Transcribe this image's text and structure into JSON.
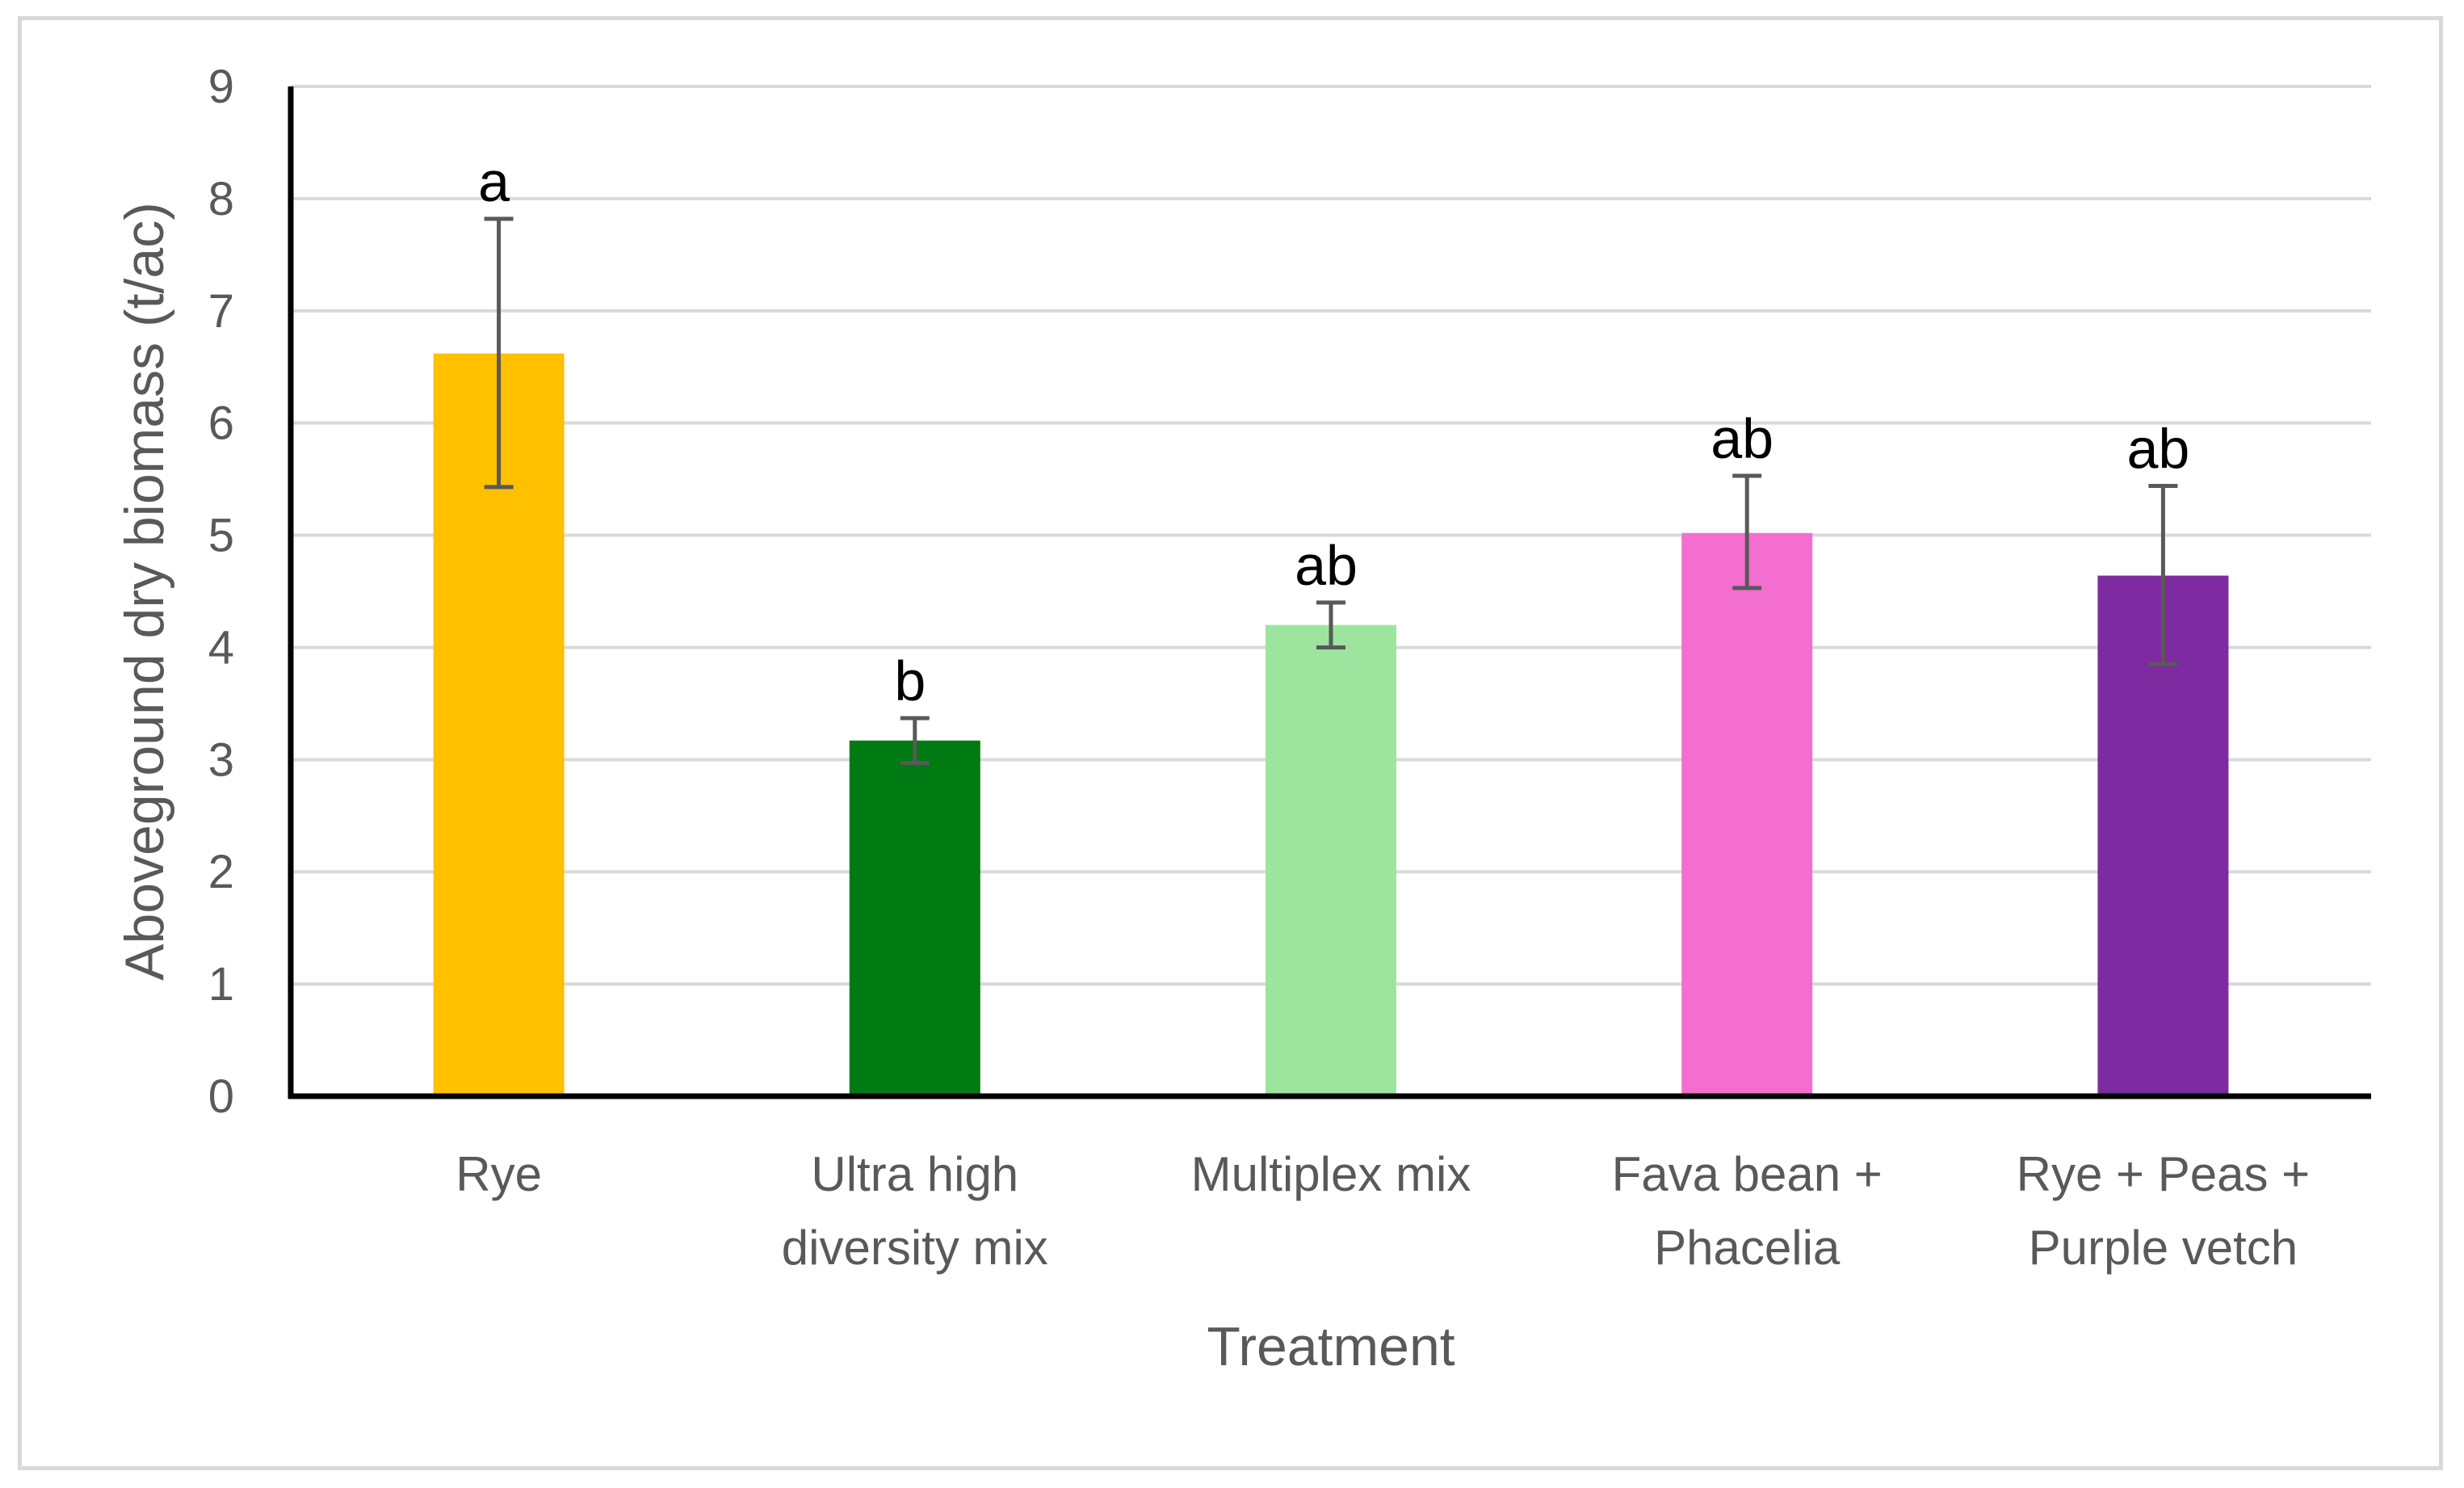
{
  "chart_data": {
    "type": "bar",
    "title": "",
    "xlabel": "Treatment",
    "ylabel": "Aboveground dry biomass (t/ac)",
    "ylim": [
      0,
      9
    ],
    "yticks": [
      "0",
      "1",
      "2",
      "3",
      "4",
      "5",
      "6",
      "7",
      "8",
      "9"
    ],
    "grid": true,
    "legend": "none",
    "categories": [
      [
        "Rye"
      ],
      [
        "Ultra high",
        "diversity mix"
      ],
      [
        "Multiplex mix"
      ],
      [
        "Fava bean +",
        "Phacelia"
      ],
      [
        "Rye + Peas +",
        "Purple vetch"
      ]
    ],
    "values": [
      6.62,
      3.17,
      4.2,
      5.02,
      4.64
    ],
    "error_low": [
      5.43,
      2.97,
      4.0,
      4.53,
      3.85
    ],
    "error_high": [
      7.82,
      3.37,
      4.4,
      5.53,
      5.44
    ],
    "significance_letters": [
      "a",
      "b",
      "ab",
      "ab",
      "ab"
    ],
    "colors": [
      "#ffc000",
      "#007a12",
      "#9de59f",
      "#f46ecf",
      "#7e2aa0"
    ],
    "gridline_color": "#d9d9d9",
    "error_bar_color": "#595959",
    "axis_color": "#000000"
  }
}
